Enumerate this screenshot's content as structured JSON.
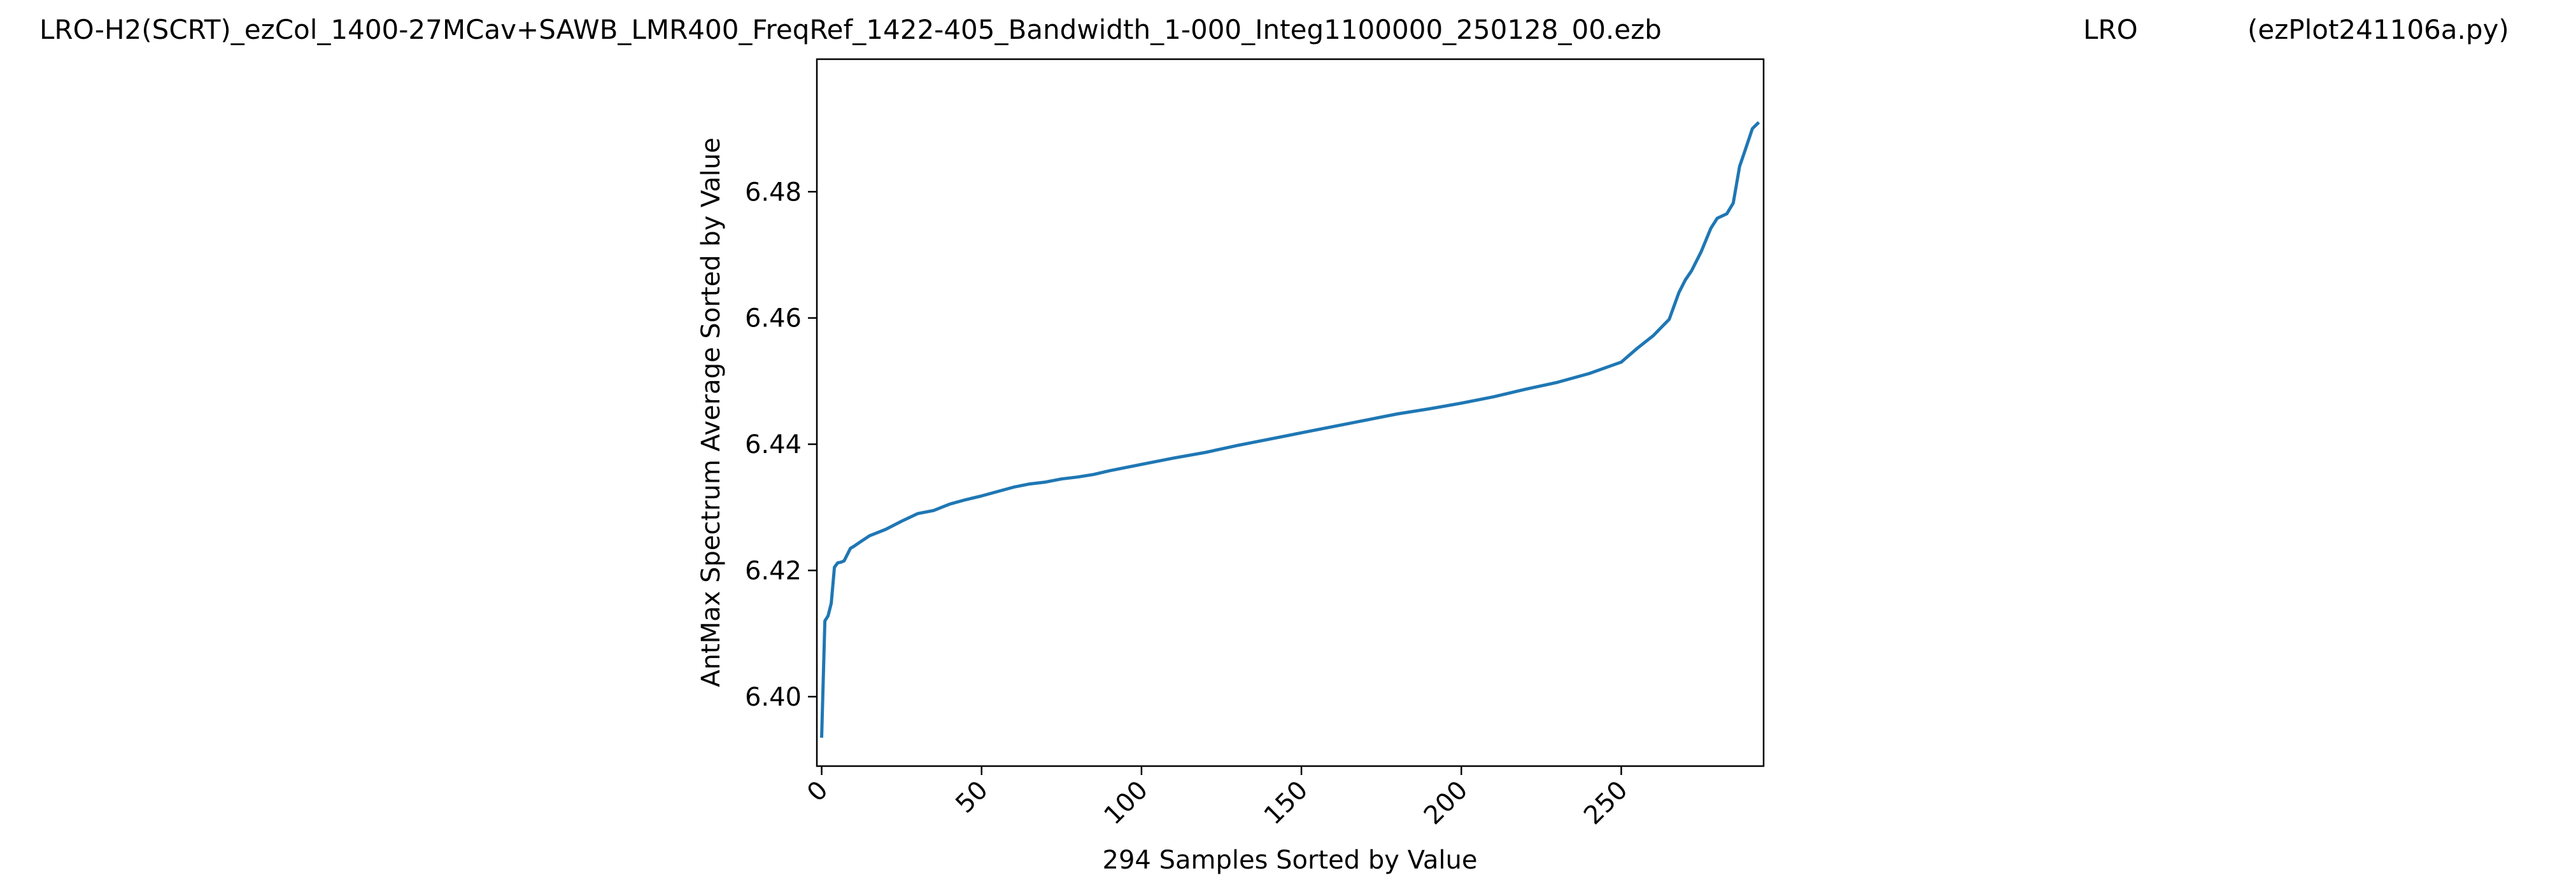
{
  "header": {
    "title": "LRO-H2(SCRT)_ezCol_1400-27MCav+SAWB_LMR400_FreqRef_1422-405_Bandwidth_1-000_Integ1100000_250128_00.ezb",
    "station": "LRO",
    "script": "(ezPlot241106a.py)"
  },
  "colors": {
    "line": "#1f77b4",
    "axes": "#000000",
    "background": "#ffffff"
  },
  "chart_data": {
    "type": "line",
    "xlabel": "294 Samples Sorted by Value",
    "ylabel": "AntMax Spectrum Average Sorted by Value",
    "xlim": [
      -1.5,
      294.5
    ],
    "ylim": [
      6.389,
      6.501
    ],
    "x_ticks": [
      0,
      50,
      100,
      150,
      200,
      250
    ],
    "x_tick_labels": [
      "0",
      "50",
      "100",
      "150",
      "200",
      "250"
    ],
    "y_ticks": [
      6.4,
      6.42,
      6.44,
      6.46,
      6.48
    ],
    "y_tick_labels": [
      "6.40",
      "6.42",
      "6.44",
      "6.46",
      "6.48"
    ],
    "grid": false,
    "series": [
      {
        "x": [
          0,
          1,
          2,
          3,
          4,
          5,
          6,
          7,
          8,
          9,
          10,
          12,
          15,
          20,
          25,
          30,
          35,
          40,
          45,
          50,
          55,
          60,
          65,
          70,
          75,
          80,
          85,
          90,
          95,
          100,
          110,
          120,
          130,
          140,
          150,
          160,
          170,
          180,
          190,
          200,
          210,
          220,
          230,
          240,
          250,
          255,
          260,
          265,
          268,
          270,
          272,
          275,
          278,
          280,
          283,
          285,
          287,
          289,
          291,
          293
        ],
        "y": [
          6.3935,
          6.412,
          6.4128,
          6.4148,
          6.4205,
          6.4212,
          6.4213,
          6.4215,
          6.4225,
          6.4235,
          6.4238,
          6.4245,
          6.4255,
          6.4265,
          6.4278,
          6.429,
          6.4295,
          6.4305,
          6.4312,
          6.4318,
          6.4325,
          6.4332,
          6.4337,
          6.434,
          6.4345,
          6.4348,
          6.4352,
          6.4358,
          6.4363,
          6.4368,
          6.4378,
          6.4387,
          6.4398,
          6.4408,
          6.4418,
          6.4428,
          6.4438,
          6.4448,
          6.4456,
          6.4465,
          6.4475,
          6.4487,
          6.4498,
          6.4512,
          6.453,
          6.4552,
          6.4572,
          6.4598,
          6.464,
          6.466,
          6.4675,
          6.4705,
          6.4742,
          6.4758,
          6.4765,
          6.4782,
          6.484,
          6.487,
          6.49,
          6.491
        ]
      }
    ]
  }
}
